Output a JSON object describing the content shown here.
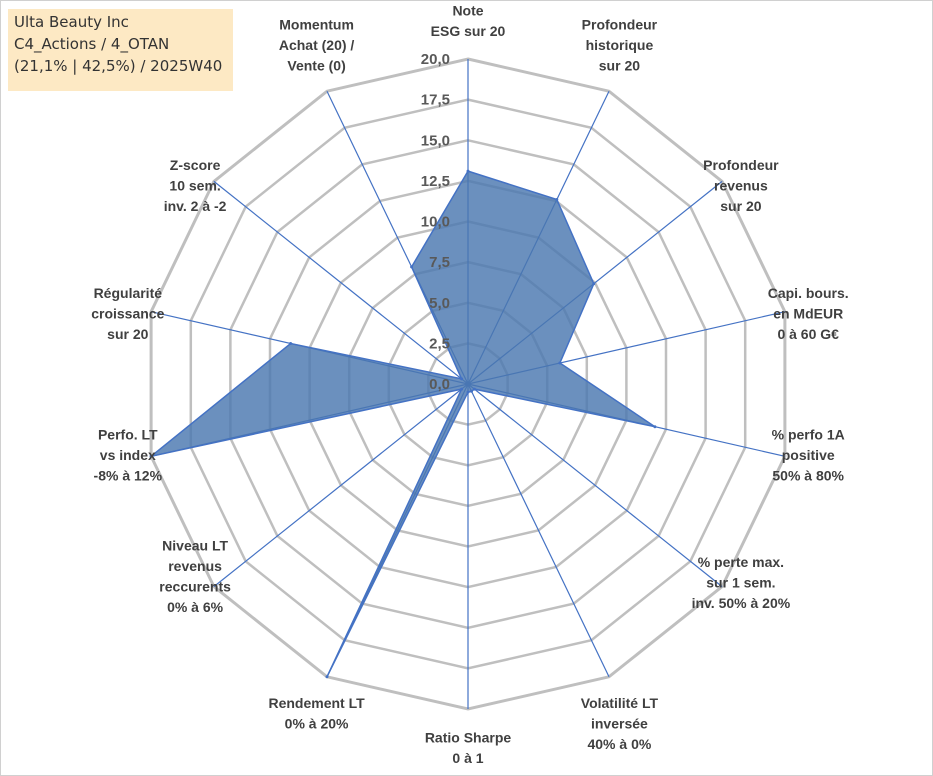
{
  "info": {
    "company": "Ulta Beauty Inc",
    "line2": "C4_Actions / 4_OTAN",
    "line3": "(21,1% | 42,5%) / 2025W40"
  },
  "colors": {
    "fill": "#4a78b0",
    "stroke": "#4472c4",
    "grid": "#bfbfbf",
    "spoke": "#4472c4",
    "info_bg": "#fde9c4"
  },
  "chart_data": {
    "type": "radar",
    "title": "",
    "rmin": 0,
    "rmax": 20,
    "ticks": [
      "0,0",
      "2,5",
      "5,0",
      "7,5",
      "10,0",
      "12,5",
      "15,0",
      "17,5",
      "20,0"
    ],
    "axes": [
      {
        "label": [
          "Note",
          "ESG sur 20"
        ],
        "value": 13.1
      },
      {
        "label": [
          "Profondeur",
          "historique",
          "sur 20"
        ],
        "value": 12.6
      },
      {
        "label": [
          "Profondeur",
          "revenus",
          "sur 20"
        ],
        "value": 9.9
      },
      {
        "label": [
          "Capi. bours.",
          "en MdEUR",
          "0 à 60 G€"
        ],
        "value": 5.8
      },
      {
        "label": [
          "% perfo 1A",
          "positive",
          "50% à 80%"
        ],
        "value": 11.8
      },
      {
        "label": [
          "% perte max.",
          "sur 1 sem.",
          "inv. 50% à 20%"
        ],
        "value": 0.5
      },
      {
        "label": [
          "Volatilité LT",
          "inversée",
          "40% à 0%"
        ],
        "value": 0.5
      },
      {
        "label": [
          "Ratio Sharpe",
          "0 à 1"
        ],
        "value": 0.5
      },
      {
        "label": [
          "Rendement LT",
          "0% à 20%"
        ],
        "value": 20.0
      },
      {
        "label": [
          "Niveau LT",
          "revenus",
          "reccurents",
          "0% à 6%"
        ],
        "value": 0.5
      },
      {
        "label": [
          "Perfo. LT",
          "vs index",
          "-8% à 12%"
        ],
        "value": 20.0
      },
      {
        "label": [
          "Régularité",
          "croissance",
          "sur 20"
        ],
        "value": 11.2
      },
      {
        "label": [
          "Z-score",
          "10 sem.",
          "inv. 2 à -2"
        ],
        "value": 0.5
      },
      {
        "label": [
          "Momentum",
          "Achat (20) /",
          "Vente (0)"
        ],
        "value": 8.0
      }
    ]
  }
}
